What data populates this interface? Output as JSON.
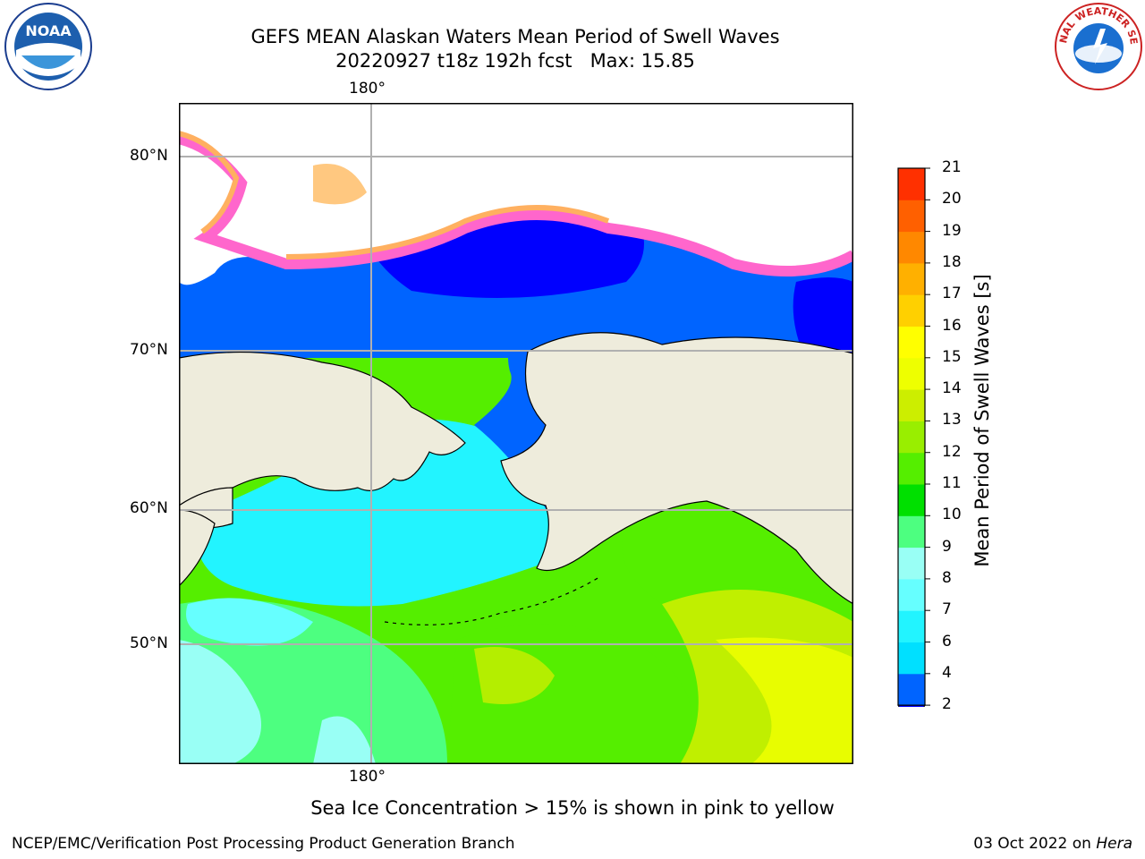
{
  "header": {
    "title_line1": "GEFS MEAN Alaskan Waters Mean Period of Swell Waves",
    "title_line2": "20220927 t18z 192h fcst   Max: 15.85"
  },
  "logos": {
    "left": "noaa-logo",
    "left_text": "NOAA",
    "right": "nws-logo",
    "right_text": "NATIONAL WEATHER SERVICE"
  },
  "map": {
    "lon_label_top": "180°",
    "lon_label_bottom": "180°",
    "lat_labels": [
      "80°N",
      "70°N",
      "60°N",
      "50°N"
    ],
    "land_color": "#eeecdc",
    "note": "Sea Ice Concentration > 15% is shown in pink to yellow"
  },
  "colorbar": {
    "label": "Mean Period of Swell Waves [s]",
    "ticks": [
      "2",
      "4",
      "6",
      "7",
      "8",
      "9",
      "10",
      "11",
      "12",
      "13",
      "14",
      "15",
      "16",
      "17",
      "18",
      "19",
      "20",
      "21"
    ],
    "colors": [
      "#0064ff",
      "#00e0ff",
      "#22f4ff",
      "#66ffff",
      "#99fff5",
      "#4dff80",
      "#00e000",
      "#55ee00",
      "#99ee00",
      "#ccee00",
      "#eeff00",
      "#ffff00",
      "#ffd000",
      "#ffb000",
      "#ff8800",
      "#ff6000",
      "#ff3000",
      "#ff0000"
    ],
    "under_color": "#0000ff"
  },
  "footer": {
    "left": "NCEP/EMC/Verification Post Processing Product Generation Branch",
    "right_date": "03 Oct 2022 on",
    "right_host": "Hera"
  }
}
